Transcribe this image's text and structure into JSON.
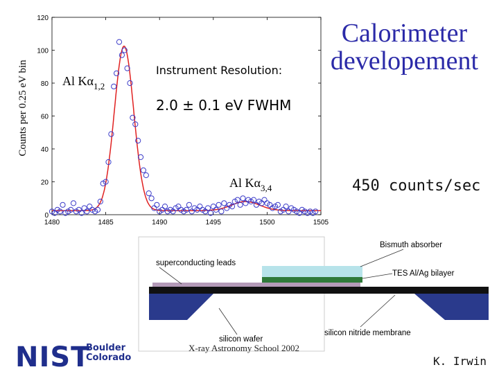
{
  "slide": {
    "title_lines": [
      "Calorimeter",
      "developement"
    ],
    "rate_text": "450 counts/sec",
    "logo_text": "NIST",
    "logo_city_lines": [
      "Boulder",
      "Colorado"
    ],
    "school_text": "X-ray Astronomy School 2002",
    "author": "K. Irwin"
  },
  "colors": {
    "title": "#2b2aa8",
    "marker": "#3a3ac8",
    "fit_line": "#e02020",
    "nist_blue": "#1f2e8c",
    "tes_bilayer": "#2f7a3a",
    "bismuth": "#b7e3ea",
    "leads": "#b49ab8",
    "membrane": "#111111",
    "wafer": "#2a3a8c"
  },
  "chart_data": {
    "type": "scatter",
    "title": "",
    "xlabel": "",
    "ylabel": "Counts per 0.25 eV bin",
    "xlim": [
      1480,
      1505
    ],
    "ylim": [
      0,
      120
    ],
    "xticks": [
      1480,
      1485,
      1490,
      1495,
      1500,
      1505
    ],
    "yticks": [
      0,
      20,
      40,
      60,
      80,
      100,
      120
    ],
    "grid": false,
    "annotations": {
      "peak1_main": "Al Kα",
      "peak1_sub": "1,2",
      "peak2_main": "Al Kα",
      "peak2_sub": "3,4",
      "resolution_title": "Instrument Resolution:",
      "resolution_value": "2.0 ± 0.1 eV FWHM"
    },
    "series": [
      {
        "values_x": [
          1480,
          1480.25,
          1480.5,
          1480.75,
          1481,
          1481.25,
          1481.5,
          1481.75,
          1482,
          1482.25,
          1482.5,
          1482.75,
          1483,
          1483.25,
          1483.5,
          1483.75,
          1484,
          1484.25,
          1484.5,
          1484.75,
          1485,
          1485.25,
          1485.5,
          1485.75,
          1486,
          1486.25,
          1486.5,
          1486.75,
          1487,
          1487.25,
          1487.5,
          1487.75,
          1488,
          1488.25,
          1488.5,
          1488.75,
          1489,
          1489.25,
          1489.5,
          1489.75,
          1490,
          1490.25,
          1490.5,
          1490.75,
          1491,
          1491.25,
          1491.5,
          1491.75,
          1492,
          1492.25,
          1492.5,
          1492.75,
          1493,
          1493.25,
          1493.5,
          1493.75,
          1494,
          1494.25,
          1494.5,
          1494.75,
          1495,
          1495.25,
          1495.5,
          1495.75,
          1496,
          1496.25,
          1496.5,
          1496.75,
          1497,
          1497.25,
          1497.5,
          1497.75,
          1498,
          1498.25,
          1498.5,
          1498.75,
          1499,
          1499.25,
          1499.5,
          1499.75,
          1500,
          1500.25,
          1500.5,
          1500.75,
          1501,
          1501.25,
          1501.5,
          1501.75,
          1502,
          1502.25,
          1502.5,
          1502.75,
          1503,
          1503.25,
          1503.5,
          1503.75,
          1504,
          1504.25,
          1504.5
        ],
        "values_y": [
          2,
          1,
          3,
          2,
          6,
          1,
          2,
          3,
          7,
          2,
          3,
          1,
          4,
          2,
          5,
          3,
          2,
          3,
          8,
          19,
          20,
          32,
          49,
          78,
          86,
          105,
          97,
          100,
          89,
          80,
          59,
          55,
          45,
          35,
          27,
          24,
          13,
          10,
          4,
          6,
          2,
          3,
          5,
          2,
          3,
          2,
          4,
          5,
          3,
          2,
          3,
          6,
          2,
          4,
          3,
          5,
          3,
          2,
          4,
          1,
          5,
          3,
          6,
          2,
          7,
          4,
          6,
          5,
          8,
          9,
          6,
          10,
          7,
          9,
          8,
          9,
          6,
          8,
          7,
          9,
          7,
          6,
          4,
          5,
          6,
          2,
          3,
          5,
          2,
          4,
          3,
          2,
          1,
          3,
          2,
          1,
          2,
          1,
          2
        ]
      }
    ],
    "fit": {
      "baseline": 2.5,
      "peaks": [
        {
          "center": 1486.7,
          "amplitude": 100,
          "sigma": 0.9
        },
        {
          "center": 1498.0,
          "amplitude": 5.5,
          "sigma": 1.3
        }
      ]
    }
  },
  "diagram": {
    "labels": {
      "bismuth": "Bismuth absorber",
      "leads": "superconducting leads",
      "tes": "TES Al/Ag bilayer",
      "wafer": "silicon wafer",
      "membrane": "silicon nitride membrane"
    }
  }
}
